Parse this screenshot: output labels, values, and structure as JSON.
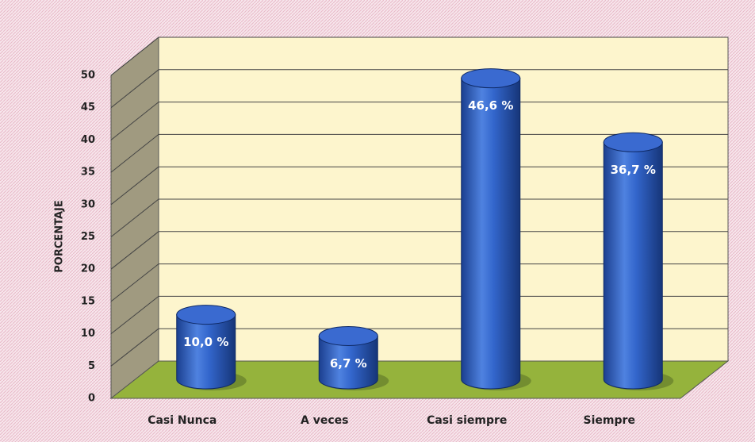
{
  "chart_data": {
    "type": "bar",
    "y_label": "PORCENTAJE",
    "categories": [
      "Casi Nunca",
      "A veces",
      "Casi siempre",
      "Siempre"
    ],
    "values": [
      10.0,
      6.7,
      46.6,
      36.7
    ],
    "value_labels": [
      "10,0 %",
      "6,7 %",
      "46,6 %",
      "36,7 %"
    ],
    "color": "#2f5fc4",
    "ylim": [
      0,
      50
    ],
    "yticks": [
      0,
      5,
      10,
      15,
      20,
      25,
      30,
      35,
      40,
      45,
      50
    ],
    "grid": true
  }
}
